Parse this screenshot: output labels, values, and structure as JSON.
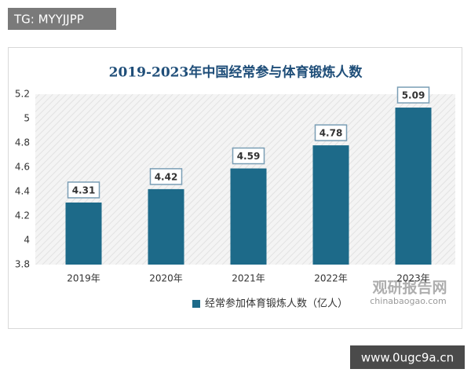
{
  "header_tag": "TG: MYYJJPP",
  "watermark": {
    "name": "观研报告网",
    "url": "chinabaogao.com"
  },
  "footer_tag": "www.0ugc9a.cn",
  "chart_data": {
    "type": "bar",
    "title": "2019-2023年中国经常参与体育锻炼人数",
    "categories": [
      "2019年",
      "2020年",
      "2021年",
      "2022年",
      "2023年"
    ],
    "series": [
      {
        "name": "经常参加体育锻炼人数（亿人）",
        "color": "#1d6a89",
        "values": [
          4.31,
          4.42,
          4.59,
          4.78,
          5.09
        ]
      }
    ],
    "ylim": [
      3.8,
      5.2
    ],
    "yticks": [
      3.8,
      4,
      4.2,
      4.4,
      4.6,
      4.8,
      5,
      5.2
    ],
    "grid": false,
    "legend": "bottom"
  }
}
